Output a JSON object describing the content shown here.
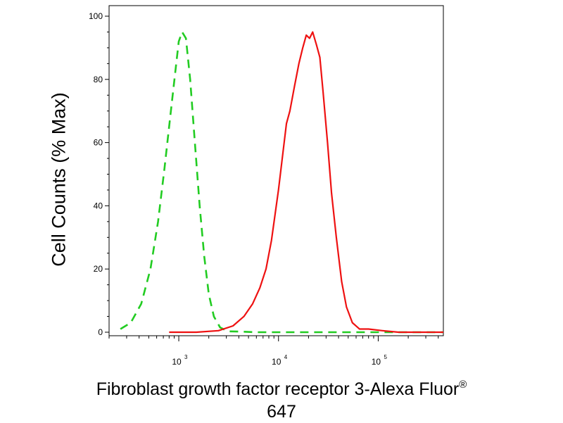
{
  "chart_data": {
    "type": "line",
    "title": "",
    "xlabel_main": "Fibroblast growth factor receptor 3-Alexa Fluor",
    "xlabel_sup": "®",
    "xlabel_line2": "647",
    "ylabel": "Cell Counts (% Max)",
    "xscale": "log",
    "xlim": [
      200,
      450000
    ],
    "ylim": [
      0,
      100
    ],
    "yticks": [
      0,
      20,
      40,
      60,
      80,
      100
    ],
    "xticks": [
      {
        "value": 1000,
        "base": "10",
        "exp": "3"
      },
      {
        "value": 10000,
        "base": "10",
        "exp": "4"
      },
      {
        "value": 100000,
        "base": "10",
        "exp": "5"
      }
    ],
    "grid": false,
    "legend": "none",
    "series": [
      {
        "color": "#22cc22",
        "dash": "dashed",
        "x": [
          260,
          330,
          420,
          520,
          620,
          720,
          820,
          920,
          1000,
          1080,
          1180,
          1300,
          1450,
          1620,
          1800,
          2000,
          2250,
          2600,
          3100,
          4000,
          6000,
          10000,
          30000,
          100000,
          450000
        ],
        "y": [
          1,
          3,
          9,
          20,
          35,
          52,
          68,
          82,
          92,
          95,
          93,
          80,
          60,
          40,
          24,
          12,
          5,
          1.5,
          0.3,
          0.2,
          0,
          0,
          0,
          0,
          0
        ]
      },
      {
        "color": "#ee1111",
        "dash": "solid",
        "x": [
          800,
          1500,
          2500,
          3500,
          4500,
          5500,
          6500,
          7500,
          8500,
          10000,
          11000,
          12000,
          13000,
          14500,
          16000,
          17500,
          19000,
          20500,
          22000,
          24000,
          26000,
          28000,
          31000,
          34000,
          38000,
          43000,
          48000,
          55000,
          65000,
          80000,
          110000,
          160000,
          450000
        ],
        "y": [
          0,
          0,
          0.5,
          2,
          5,
          9,
          14,
          20,
          29,
          45,
          56,
          66,
          70,
          78,
          85,
          90,
          94,
          93,
          95,
          91,
          87,
          76,
          60,
          44,
          30,
          16,
          8,
          3,
          1,
          1,
          0.5,
          0,
          0
        ]
      }
    ]
  }
}
